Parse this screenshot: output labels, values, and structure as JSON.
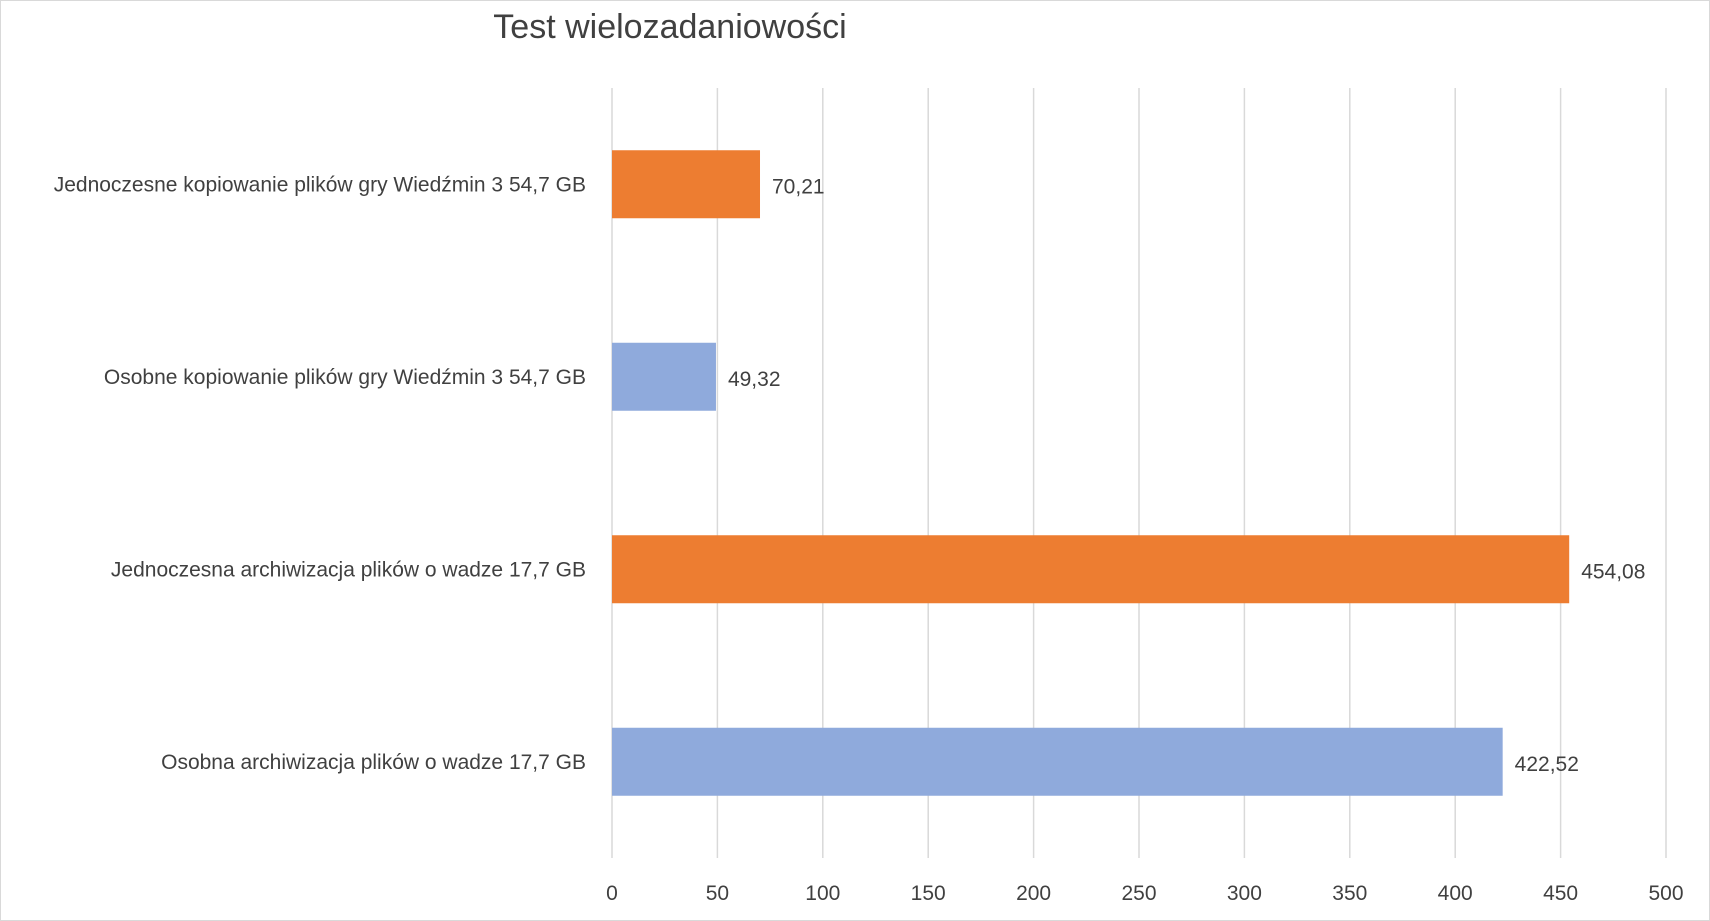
{
  "chart_data": {
    "type": "bar",
    "orientation": "horizontal",
    "title": "Test wielozadaniowości",
    "categories": [
      "Jednoczesne kopiowanie plików gry Wiedźmin 3 54,7 GB",
      "Osobne kopiowanie plików gry Wiedźmin 3 54,7 GB",
      "Jednoczesna archiwizacja plików o wadze 17,7 GB",
      "Osobna archiwizacja plików o wadze 17,7 GB"
    ],
    "values": [
      70.21,
      49.32,
      454.08,
      422.52
    ],
    "value_labels": [
      "70,21",
      "49,32",
      "454,08",
      "422,52"
    ],
    "bar_colors": [
      "#ed7d31",
      "#8faadc",
      "#ed7d31",
      "#8faadc"
    ],
    "xlim": [
      0,
      500
    ],
    "xticks": [
      0,
      50,
      100,
      150,
      200,
      250,
      300,
      350,
      400,
      450,
      500
    ],
    "xlabel": "",
    "ylabel": "",
    "grid": "vertical",
    "legend": "none"
  }
}
